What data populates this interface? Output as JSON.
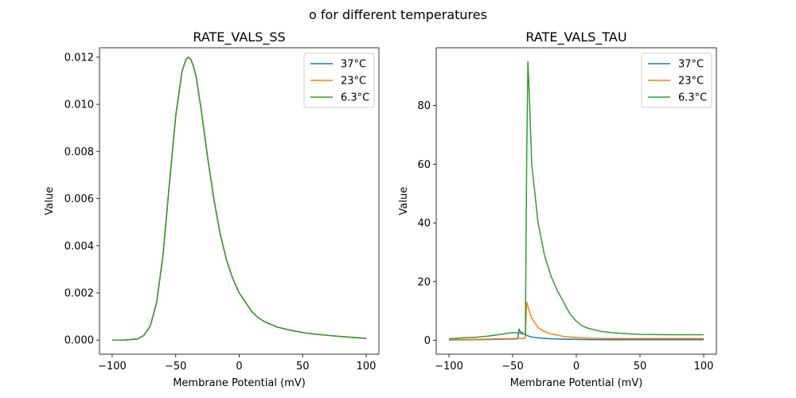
{
  "figure": {
    "suptitle": "o for different temperatures"
  },
  "chart_data": [
    {
      "type": "line",
      "title": "RATE_VALS_SS",
      "xlabel": "Membrane Potential (mV)",
      "ylabel": "Value",
      "xlim": [
        -110,
        110
      ],
      "ylim": [
        -0.0006,
        0.0124
      ],
      "xticks": [
        -100,
        -50,
        0,
        50,
        100
      ],
      "xtick_labels": [
        "−100",
        "−50",
        "0",
        "50",
        "100"
      ],
      "yticks": [
        0,
        0.002,
        0.004,
        0.006,
        0.008,
        0.01,
        0.012
      ],
      "ytick_labels": [
        "0.000",
        "0.002",
        "0.004",
        "0.006",
        "0.008",
        "0.010",
        "0.012"
      ],
      "grid": false,
      "legend": "top-right",
      "x": [
        -100,
        -90,
        -80,
        -75,
        -70,
        -65,
        -60,
        -55,
        -50,
        -45,
        -42,
        -40,
        -38,
        -36,
        -34,
        -30,
        -25,
        -20,
        -15,
        -10,
        -5,
        0,
        5,
        10,
        15,
        20,
        30,
        40,
        50,
        60,
        70,
        80,
        90,
        100
      ],
      "series": [
        {
          "name": "37°C",
          "color": "#1f77b4",
          "values": [
            0.0,
            0.0,
            5e-05,
            0.0002,
            0.0006,
            0.0016,
            0.0036,
            0.0066,
            0.0095,
            0.0114,
            0.0119,
            0.012,
            0.0119,
            0.0116,
            0.0112,
            0.0098,
            0.0078,
            0.006,
            0.0045,
            0.0034,
            0.0026,
            0.002,
            0.0016,
            0.0012,
            0.00095,
            0.00078,
            0.00055,
            0.00042,
            0.00032,
            0.00025,
            0.0002,
            0.00015,
            0.00011,
            7e-05
          ]
        },
        {
          "name": "23°C",
          "color": "#ff7f0e",
          "values": [
            0.0,
            0.0,
            5e-05,
            0.0002,
            0.0006,
            0.0016,
            0.0036,
            0.0066,
            0.0095,
            0.0114,
            0.0119,
            0.012,
            0.0119,
            0.0116,
            0.0112,
            0.0098,
            0.0078,
            0.006,
            0.0045,
            0.0034,
            0.0026,
            0.002,
            0.0016,
            0.0012,
            0.00095,
            0.00078,
            0.00055,
            0.00042,
            0.00032,
            0.00025,
            0.0002,
            0.00015,
            0.00011,
            7e-05
          ]
        },
        {
          "name": "6.3°C",
          "color": "#2ca02c",
          "values": [
            0.0,
            0.0,
            5e-05,
            0.0002,
            0.0006,
            0.0016,
            0.0036,
            0.0066,
            0.0095,
            0.0114,
            0.0119,
            0.012,
            0.0119,
            0.0116,
            0.0112,
            0.0098,
            0.0078,
            0.006,
            0.0045,
            0.0034,
            0.0026,
            0.002,
            0.0016,
            0.0012,
            0.00095,
            0.00078,
            0.00055,
            0.00042,
            0.00032,
            0.00025,
            0.0002,
            0.00015,
            0.00011,
            7e-05
          ]
        }
      ]
    },
    {
      "type": "line",
      "title": "RATE_VALS_TAU",
      "xlabel": "Membrane Potential (mV)",
      "ylabel": "Value",
      "xlim": [
        -110,
        110
      ],
      "ylim": [
        -4.75,
        99.7
      ],
      "xticks": [
        -100,
        -50,
        0,
        50,
        100
      ],
      "xtick_labels": [
        "−100",
        "−50",
        "0",
        "50",
        "100"
      ],
      "yticks": [
        0,
        20,
        40,
        60,
        80
      ],
      "ytick_labels": [
        "0",
        "20",
        "40",
        "60",
        "80"
      ],
      "grid": false,
      "legend": "top-right",
      "series": [
        {
          "name": "37°C",
          "color": "#1f77b4",
          "x": [
            -100,
            -80,
            -60,
            -50,
            -46,
            -45,
            -44,
            -40,
            -35,
            -30,
            -20,
            -10,
            0,
            10,
            25,
            50,
            75,
            100
          ],
          "values": [
            0.1,
            0.2,
            0.35,
            0.45,
            0.5,
            3.8,
            3.0,
            1.8,
            1.1,
            0.8,
            0.5,
            0.4,
            0.3,
            0.25,
            0.2,
            0.2,
            0.2,
            0.2
          ]
        },
        {
          "name": "23°C",
          "color": "#ff7f0e",
          "x": [
            -100,
            -80,
            -60,
            -50,
            -40,
            -39,
            -38,
            -35,
            -30,
            -25,
            -20,
            -10,
            0,
            10,
            25,
            50,
            75,
            100
          ],
          "values": [
            0.2,
            0.35,
            0.5,
            0.6,
            0.7,
            13.0,
            11.5,
            7.5,
            4.3,
            3.0,
            2.2,
            1.3,
            0.9,
            0.7,
            0.6,
            0.6,
            0.6,
            0.6
          ]
        },
        {
          "name": "6.3°C",
          "color": "#2ca02c",
          "x": [
            -100,
            -90,
            -80,
            -70,
            -60,
            -50,
            -45,
            -40,
            -39,
            -38,
            -37,
            -35,
            -30,
            -25,
            -20,
            -15,
            -10,
            -5,
            0,
            5,
            10,
            20,
            30,
            50,
            75,
            100
          ],
          "values": [
            0.5,
            0.8,
            1.0,
            1.4,
            2.0,
            2.6,
            2.5,
            2.0,
            60.0,
            95.0,
            85.0,
            60.0,
            40.0,
            29.0,
            22.0,
            17.0,
            13.0,
            9.0,
            6.5,
            4.8,
            4.0,
            3.0,
            2.5,
            2.0,
            1.9,
            1.9
          ]
        }
      ]
    }
  ]
}
